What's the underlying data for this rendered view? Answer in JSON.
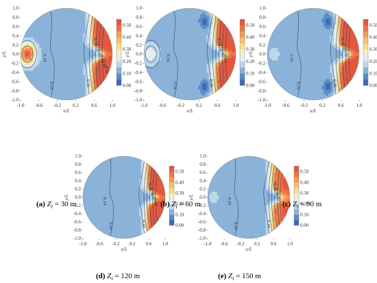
{
  "chart_data": [
    {
      "type": "contour",
      "panel": "a",
      "caption_letter": "(a)",
      "caption_var": "Z",
      "caption_sub": "i",
      "caption_value": "= 30 m",
      "xlabel": "x/L",
      "ylabel": "y/L",
      "xticks": [
        "-1.0",
        "-0.6",
        "-0.2",
        "0.2",
        "0.6",
        "1.0"
      ],
      "yticks": [
        "1.0",
        "0.8",
        "0.6",
        "0.4",
        "0.2",
        "0.0",
        "-0.2",
        "-0.4",
        "-0.6",
        "-0.8",
        "-1.0"
      ],
      "xlim": [
        -1.0,
        1.0
      ],
      "ylim": [
        -1.0,
        1.0
      ],
      "colorbar_ticks": [
        "0.50",
        "0.40",
        "0.30",
        "0.20",
        "0.10",
        "0.00"
      ],
      "colorbar_range": [
        0.0,
        0.55
      ],
      "contour_labels": [
        "0.10",
        "0.10",
        "0.10",
        "0.10",
        "0.20",
        "0.30",
        "0.30",
        "0.40",
        "0.50"
      ],
      "features": {
        "left_peak": 0.5,
        "right_wall_max": 0.55,
        "dark_pockets": false
      }
    },
    {
      "type": "contour",
      "panel": "b",
      "caption_letter": "(b)",
      "caption_var": "Z",
      "caption_sub": "i",
      "caption_value": "= 60 m",
      "xlabel": "x/L",
      "ylabel": "y/L",
      "xticks": [
        "-1.0",
        "-0.6",
        "-0.2",
        "0.2",
        "0.6",
        "1.0"
      ],
      "yticks": [
        "1.0",
        "0.8",
        "0.6",
        "0.4",
        "0.2",
        "0.0",
        "-0.2",
        "-0.4",
        "-0.6",
        "-0.8",
        "-1.0"
      ],
      "xlim": [
        -1.0,
        1.0
      ],
      "ylim": [
        -1.0,
        1.0
      ],
      "colorbar_ticks": [
        "0.50",
        "0.40",
        "0.30",
        "0.20",
        "0.10",
        "0.00"
      ],
      "colorbar_range": [
        0.0,
        0.55
      ],
      "contour_labels": [
        "0.10",
        "0.10",
        "0.10",
        "0.20",
        "0.30",
        "0.40",
        "0.50"
      ],
      "features": {
        "left_peak": 0.2,
        "right_wall_max": 0.55,
        "dark_pockets": true
      }
    },
    {
      "type": "contour",
      "panel": "c",
      "caption_letter": "(c)",
      "caption_var": "Z",
      "caption_sub": "i",
      "caption_value": "= 90 m",
      "xlabel": "x/L",
      "ylabel": "y/L",
      "xticks": [
        "-1.0",
        "-0.6",
        "-0.2",
        "0.2",
        "0.6",
        "1.0"
      ],
      "yticks": [
        "1.0",
        "0.8",
        "0.6",
        "0.4",
        "0.2",
        "0.0",
        "-0.2",
        "-0.4",
        "-0.6",
        "-0.8",
        "-1.0"
      ],
      "xlim": [
        -1.0,
        1.0
      ],
      "ylim": [
        -1.0,
        1.0
      ],
      "colorbar_ticks": [
        "0.50",
        "0.40",
        "0.30",
        "0.20",
        "0.10",
        "0.00"
      ],
      "colorbar_range": [
        0.0,
        0.55
      ],
      "contour_labels": [
        "0.10",
        "0.10",
        "0.10",
        "0.30",
        "0.40",
        "0.50"
      ],
      "features": {
        "left_peak": 0.13,
        "right_wall_max": 0.55,
        "dark_pockets": true
      }
    },
    {
      "type": "contour",
      "panel": "d",
      "caption_letter": "(d)",
      "caption_var": "Z",
      "caption_sub": "i",
      "caption_value": "= 120 m",
      "xlabel": "x/L",
      "ylabel": "y/L",
      "xticks": [
        "-1.0",
        "-0.6",
        "-0.2",
        "0.2",
        "0.6",
        "1.0"
      ],
      "yticks": [
        "1.0",
        "0.8",
        "0.6",
        "0.4",
        "0.2",
        "0.0",
        "-0.2",
        "-0.4",
        "-0.6",
        "-0.8",
        "-1.0"
      ],
      "xlim": [
        -1.0,
        1.0
      ],
      "ylim": [
        -1.0,
        1.0
      ],
      "colorbar_ticks": [
        "0.50",
        "0.40",
        "0.30",
        "0.20",
        "0.10",
        "0.00"
      ],
      "colorbar_range": [
        0.0,
        0.55
      ],
      "contour_labels": [
        "0.10",
        "0.10",
        "0.10",
        "0.20",
        "0.30",
        "0.40",
        "0.50"
      ],
      "features": {
        "left_peak": 0.1,
        "right_wall_max": 0.55,
        "dark_pockets": false
      }
    },
    {
      "type": "contour",
      "panel": "e",
      "caption_letter": "(e)",
      "caption_var": "Z",
      "caption_sub": "i",
      "caption_value": "= 150 m",
      "xlabel": "x/L",
      "ylabel": "y/L",
      "xticks": [
        "-1.0",
        "-0.6",
        "-0.2",
        "0.2",
        "0.6",
        "1.0"
      ],
      "yticks": [
        "1.0",
        "0.8",
        "0.6",
        "0.4",
        "0.2",
        "0.0",
        "-0.2",
        "-0.4",
        "-0.6",
        "-0.8",
        "-1.0"
      ],
      "xlim": [
        -1.0,
        1.0
      ],
      "ylim": [
        -1.0,
        1.0
      ],
      "colorbar_ticks": [
        "0.50",
        "0.40",
        "0.30",
        "0.20",
        "0.10",
        "0.00"
      ],
      "colorbar_range": [
        0.0,
        0.55
      ],
      "contour_labels": [
        "0.10",
        "0.10",
        "0.10",
        "0.20",
        "0.30",
        "0.40"
      ],
      "features": {
        "left_peak": 0.13,
        "right_wall_max": 0.48,
        "dark_pockets": false
      }
    }
  ],
  "colors": {
    "scale": [
      "#3b6db0",
      "#5b8cc7",
      "#8bb3d9",
      "#bcd6ea",
      "#e4eef2",
      "#f2efc4",
      "#f7dc8e",
      "#f9bf6c",
      "#f59a55",
      "#ee7448",
      "#e3583e"
    ],
    "line": "#2f4a63"
  }
}
